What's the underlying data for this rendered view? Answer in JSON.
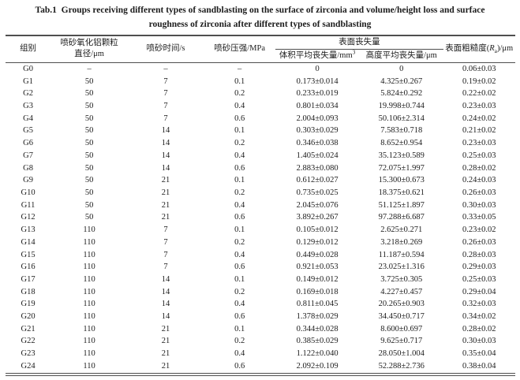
{
  "colors": {
    "background": "#ffffff",
    "text": "#1c1c1c",
    "rules": "#4f4f4f"
  },
  "caption": {
    "line1": "Tab.1  Groups receiving different types of sandblasting on the surface of zirconia and volume/height loss and surface",
    "line2": "roughness of zirconia after different types of sandblasting"
  },
  "table": {
    "headers": {
      "group": "组别",
      "particle_diameter_line1": "喷砂氧化铝颗粒",
      "particle_diameter_line2": "直径/μm",
      "time": "喷砂时间/s",
      "pressure": "喷砂压强/MPa",
      "surface_loss_group": "表面丧失量",
      "volume_loss_base": "体积平均丧失量/mm",
      "volume_loss_sup": "3",
      "height_loss": "高度平均丧失量/μm",
      "roughness_prefix": "表面粗糙度(",
      "roughness_symbol": "R",
      "roughness_sub": "a",
      "roughness_suffix": ")/μm"
    },
    "rows": [
      [
        "G0",
        "–",
        "–",
        "–",
        "0",
        "0",
        "0.06±0.03"
      ],
      [
        "G1",
        "50",
        "7",
        "0.1",
        "0.173±0.014",
        "4.325±0.267",
        "0.19±0.02"
      ],
      [
        "G2",
        "50",
        "7",
        "0.2",
        "0.233±0.019",
        "5.824±0.292",
        "0.22±0.02"
      ],
      [
        "G3",
        "50",
        "7",
        "0.4",
        "0.801±0.034",
        "19.998±0.744",
        "0.23±0.03"
      ],
      [
        "G4",
        "50",
        "7",
        "0.6",
        "2.004±0.093",
        "50.106±2.314",
        "0.24±0.02"
      ],
      [
        "G5",
        "50",
        "14",
        "0.1",
        "0.303±0.029",
        "7.583±0.718",
        "0.21±0.02"
      ],
      [
        "G6",
        "50",
        "14",
        "0.2",
        "0.346±0.038",
        "8.652±0.954",
        "0.23±0.03"
      ],
      [
        "G7",
        "50",
        "14",
        "0.4",
        "1.405±0.024",
        "35.123±0.589",
        "0.25±0.03"
      ],
      [
        "G8",
        "50",
        "14",
        "0.6",
        "2.883±0.080",
        "72.075±1.997",
        "0.28±0.02"
      ],
      [
        "G9",
        "50",
        "21",
        "0.1",
        "0.612±0.027",
        "15.300±0.673",
        "0.24±0.03"
      ],
      [
        "G10",
        "50",
        "21",
        "0.2",
        "0.735±0.025",
        "18.375±0.621",
        "0.26±0.03"
      ],
      [
        "G11",
        "50",
        "21",
        "0.4",
        "2.045±0.076",
        "51.125±1.897",
        "0.30±0.03"
      ],
      [
        "G12",
        "50",
        "21",
        "0.6",
        "3.892±0.267",
        "97.288±6.687",
        "0.33±0.05"
      ],
      [
        "G13",
        "110",
        "7",
        "0.1",
        "0.105±0.012",
        "2.625±0.271",
        "0.23±0.02"
      ],
      [
        "G14",
        "110",
        "7",
        "0.2",
        "0.129±0.012",
        "3.218±0.269",
        "0.26±0.03"
      ],
      [
        "G15",
        "110",
        "7",
        "0.4",
        "0.449±0.028",
        "11.187±0.594",
        "0.28±0.03"
      ],
      [
        "G16",
        "110",
        "7",
        "0.6",
        "0.921±0.053",
        "23.025±1.316",
        "0.29±0.03"
      ],
      [
        "G17",
        "110",
        "14",
        "0.1",
        "0.149±0.012",
        "3.725±0.305",
        "0.25±0.03"
      ],
      [
        "G18",
        "110",
        "14",
        "0.2",
        "0.169±0.018",
        "4.227±0.457",
        "0.29±0.04"
      ],
      [
        "G19",
        "110",
        "14",
        "0.4",
        "0.811±0.045",
        "20.265±0.903",
        "0.32±0.03"
      ],
      [
        "G20",
        "110",
        "14",
        "0.6",
        "1.378±0.029",
        "34.450±0.717",
        "0.34±0.02"
      ],
      [
        "G21",
        "110",
        "21",
        "0.1",
        "0.344±0.028",
        "8.600±0.697",
        "0.28±0.02"
      ],
      [
        "G22",
        "110",
        "21",
        "0.2",
        "0.385±0.029",
        "9.625±0.717",
        "0.30±0.03"
      ],
      [
        "G23",
        "110",
        "21",
        "0.4",
        "1.122±0.040",
        "28.050±1.004",
        "0.35±0.04"
      ],
      [
        "G24",
        "110",
        "21",
        "0.6",
        "2.092±0.109",
        "52.288±2.736",
        "0.38±0.04"
      ]
    ]
  }
}
